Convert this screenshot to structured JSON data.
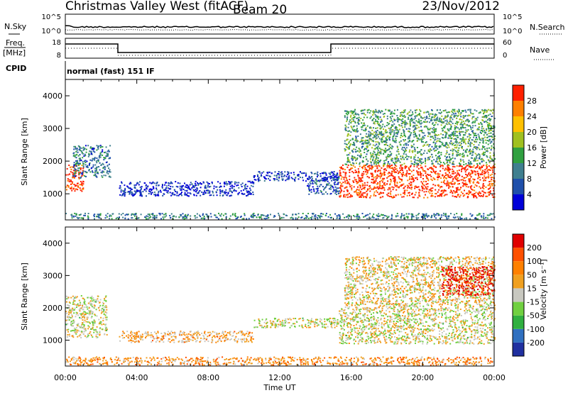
{
  "header": {
    "station": "Christmas Valley West (fitACF)",
    "beam": "Beam 20",
    "date": "23/Nov/2012"
  },
  "noise_panel": {
    "left_label": "N.Sky",
    "right_label": "N.Search",
    "left_ticks": [
      "10^5",
      "10^0"
    ],
    "right_ticks": [
      "10^5",
      "10^0"
    ]
  },
  "freq_panel": {
    "left_label_1": "Freq.",
    "left_label_2": "[MHz]",
    "right_label": "Nave",
    "left_ticks": [
      "18",
      "8"
    ],
    "right_ticks": [
      "60",
      "0"
    ]
  },
  "cpid_panel": {
    "label": "CPID",
    "text": "normal (fast) 151 IF"
  },
  "chart_data": [
    {
      "type": "heatmap",
      "name": "power",
      "ylabel": "Slant Range [km]",
      "xlabel": "",
      "ylim": [
        200,
        4500
      ],
      "yticks": [
        "1000",
        "2000",
        "3000",
        "4000"
      ],
      "xticks": [
        "00:00",
        "04:00",
        "08:00",
        "12:00",
        "16:00",
        "20:00",
        "00:00"
      ],
      "colorbar": {
        "label": "Power [dB]",
        "ticks": [
          "4",
          "8",
          "12",
          "16",
          "20",
          "24",
          "28"
        ],
        "colors": [
          "#0000d8",
          "#1f4faa",
          "#3f7f8f",
          "#30a040",
          "#a0c020",
          "#ffc000",
          "#ff8000",
          "#ff2000"
        ]
      },
      "regions": [
        {
          "t0": 0.0,
          "t1": 1.0,
          "r0": 1100,
          "r1": 1900,
          "level": 0.92
        },
        {
          "t0": 0.4,
          "t1": 2.5,
          "r0": 1500,
          "r1": 2500,
          "level": 0.28
        },
        {
          "t0": 3.0,
          "t1": 10.5,
          "r0": 950,
          "r1": 1400,
          "level": 0.1
        },
        {
          "t0": 10.5,
          "t1": 15.3,
          "r0": 1400,
          "r1": 1700,
          "level": 0.15
        },
        {
          "t0": 13.5,
          "t1": 15.3,
          "r0": 1000,
          "r1": 1550,
          "level": 0.22
        },
        {
          "t0": 15.3,
          "t1": 24.0,
          "r0": 900,
          "r1": 1900,
          "level": 0.95
        },
        {
          "t0": 15.6,
          "t1": 24.0,
          "r0": 1900,
          "r1": 3600,
          "level": 0.4
        },
        {
          "t0": 0.0,
          "t1": 24.0,
          "r0": 250,
          "r1": 420,
          "level": 0.3
        }
      ]
    },
    {
      "type": "heatmap",
      "name": "velocity",
      "ylabel": "Slant Range [km]",
      "xlabel": "Time UT",
      "ylim": [
        200,
        4500
      ],
      "yticks": [
        "1000",
        "2000",
        "3000",
        "4000"
      ],
      "xticks": [
        "00:00",
        "04:00",
        "08:00",
        "12:00",
        "16:00",
        "20:00",
        "00:00"
      ],
      "colorbar": {
        "label": "Velocity [m s⁻¹]",
        "ticks": [
          "200",
          "100",
          "50",
          "15",
          "-15",
          "-50",
          "-100",
          "-200"
        ],
        "colors": [
          "#2030a0",
          "#3070c0",
          "#30b040",
          "#70d040",
          "#c8c8c0",
          "#f0a020",
          "#ff8000",
          "#ff5000",
          "#e00000"
        ]
      },
      "regions": [
        {
          "t0": 0.0,
          "t1": 2.3,
          "r0": 1100,
          "r1": 2400,
          "level": 0.5
        },
        {
          "t0": 3.0,
          "t1": 10.5,
          "r0": 950,
          "r1": 1300,
          "level": 0.62
        },
        {
          "t0": 10.5,
          "t1": 15.3,
          "r0": 1400,
          "r1": 1700,
          "level": 0.5
        },
        {
          "t0": 15.3,
          "t1": 24.0,
          "r0": 900,
          "r1": 2000,
          "level": 0.5
        },
        {
          "t0": 15.6,
          "t1": 24.0,
          "r0": 2000,
          "r1": 3600,
          "level": 0.55
        },
        {
          "t0": 21.0,
          "t1": 24.0,
          "r0": 2400,
          "r1": 3300,
          "level": 0.95
        },
        {
          "t0": 0.0,
          "t1": 24.0,
          "r0": 250,
          "r1": 500,
          "level": 0.68
        }
      ]
    }
  ]
}
